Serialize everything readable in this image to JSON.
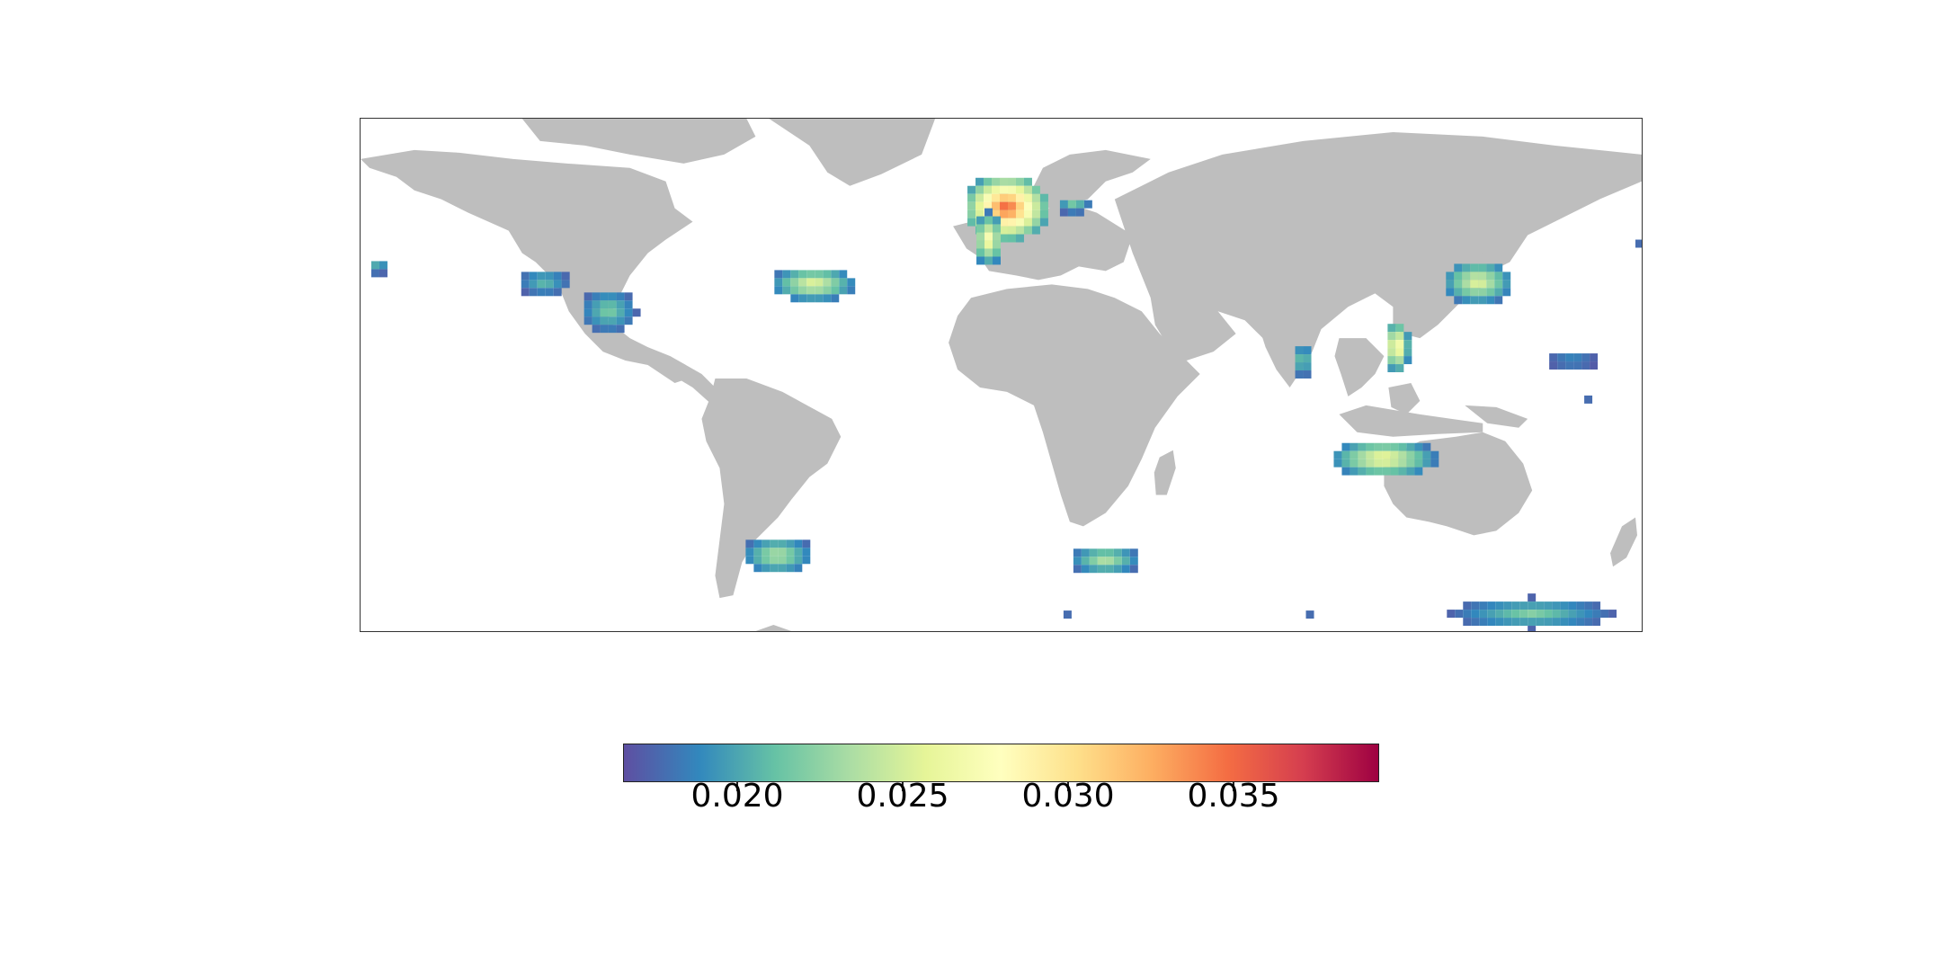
{
  "map": {
    "projection": "equirectangular world map",
    "land_color": "#bebebe",
    "ocean_color": "#ffffff",
    "heat_clusters": [
      {
        "region": "North Pacific (Hawaii)",
        "level": 0.021
      },
      {
        "region": "California coast",
        "level": 0.021
      },
      {
        "region": "Baja / Mexico coast",
        "level": 0.022
      },
      {
        "region": "North Atlantic (Azores)",
        "level": 0.026
      },
      {
        "region": "Western Europe / North Sea",
        "level": 0.036
      },
      {
        "region": "Baltic Sea",
        "level": 0.022
      },
      {
        "region": "Iberian coast",
        "level": 0.028
      },
      {
        "region": "South Atlantic (Argentina)",
        "level": 0.024
      },
      {
        "region": "South Atlantic (South Africa)",
        "level": 0.024
      },
      {
        "region": "Sri Lanka",
        "level": 0.022
      },
      {
        "region": "East China Sea / Japan",
        "level": 0.026
      },
      {
        "region": "South China Sea / Vietnam",
        "level": 0.029
      },
      {
        "region": "North-west Pacific",
        "level": 0.019
      },
      {
        "region": "Indonesia / NW Australia",
        "level": 0.027
      },
      {
        "region": "Southern Ocean (south of Australia)",
        "level": 0.022
      }
    ]
  },
  "colorbar": {
    "colormap": "Spectral_r",
    "min": 0.0163,
    "max": 0.0394,
    "ticks": [
      {
        "value": 0.02,
        "label": "0.020"
      },
      {
        "value": 0.025,
        "label": "0.025"
      },
      {
        "value": 0.03,
        "label": "0.030"
      },
      {
        "value": 0.035,
        "label": "0.035"
      }
    ],
    "stops": [
      "#5e4fa2",
      "#3288bd",
      "#66c2a5",
      "#abdda4",
      "#e6f598",
      "#ffffbf",
      "#fee08b",
      "#fdae61",
      "#f46d43",
      "#d53e4f",
      "#9e0142"
    ]
  }
}
